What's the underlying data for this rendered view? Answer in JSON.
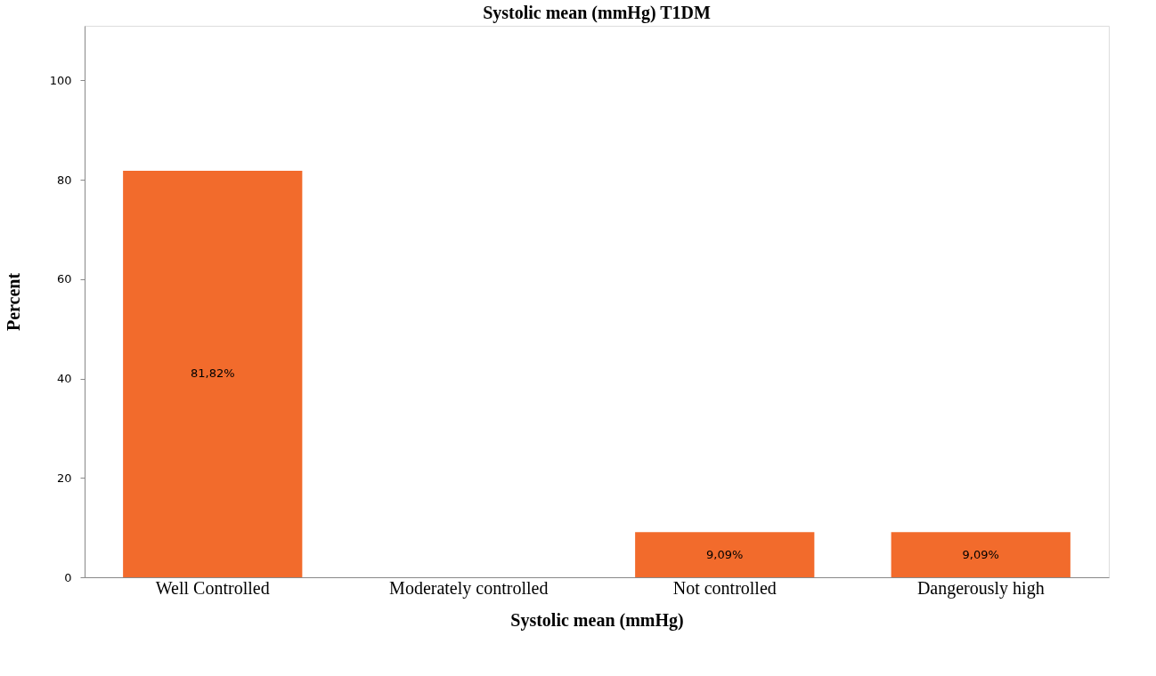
{
  "chart_data": {
    "type": "bar",
    "title": "Systolic mean (mmHg) T1DM",
    "xlabel": "Systolic mean (mmHg)",
    "ylabel": "Percent",
    "categories": [
      "Well Controlled",
      "Moderately controlled",
      "Not controlled",
      "Dangerously high"
    ],
    "values": [
      81.82,
      0,
      9.09,
      9.09
    ],
    "value_labels": [
      "81,82%",
      null,
      "9,09%",
      "9,09%"
    ],
    "color": "#f26b2c",
    "ylim": [
      0,
      111
    ],
    "yticks": [
      0,
      20,
      40,
      60,
      80,
      100
    ],
    "grid": false
  }
}
